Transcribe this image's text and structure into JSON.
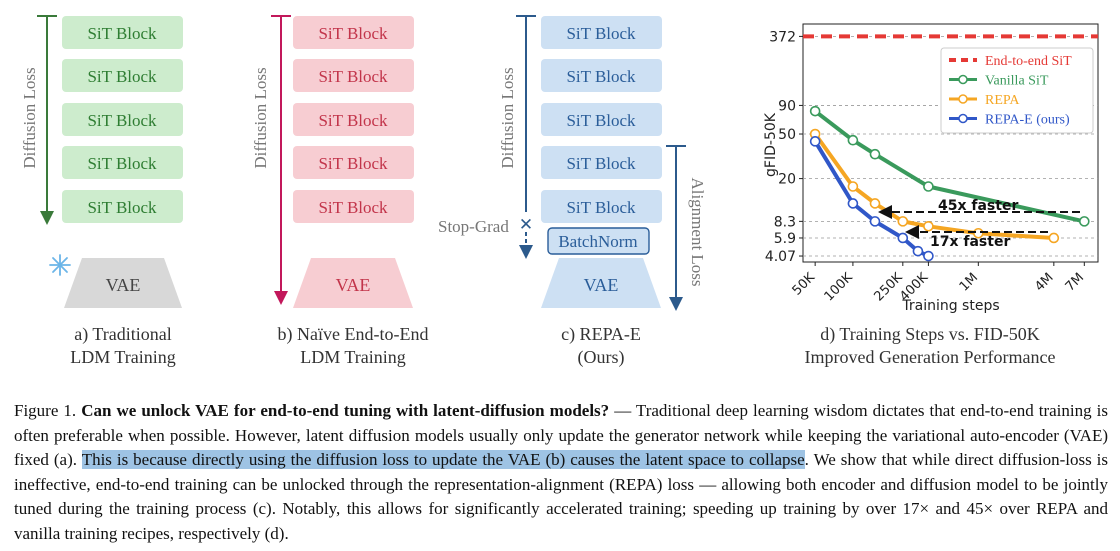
{
  "colors": {
    "green_fill": "#cdeccd",
    "green_text": "#2e7d32",
    "green_arrow": "#3a7a3a",
    "pink_fill": "#f7cdd2",
    "pink_text": "#c2344a",
    "pink_arrow": "#c2185b",
    "blue_fill": "#cde0f3",
    "blue_text": "#2a5d99",
    "blue_arrow": "#2c5a8c",
    "vae_gray": "#d8d8d8",
    "e2e_red": "#e53935",
    "vanilla_green": "#3a9a5c",
    "repa_orange": "#f5a623",
    "repae_blue": "#3057c8",
    "highlight": "#9ec3e4"
  },
  "panel_a": {
    "loss_label": "Diffusion Loss",
    "blocks": [
      "SiT Block",
      "SiT Block",
      "SiT Block",
      "SiT Block",
      "SiT Block"
    ],
    "vae_label": "VAE",
    "frozen_icon": "snowflake-icon",
    "caption_line1": "a) Traditional",
    "caption_line2": "LDM Training"
  },
  "panel_b": {
    "loss_label": "Diffusion Loss",
    "blocks": [
      "SiT Block",
      "SiT Block",
      "SiT Block",
      "SiT Block",
      "SiT Block"
    ],
    "vae_label": "VAE",
    "caption_line1": "b) Naïve End-to-End",
    "caption_line2": "LDM Training"
  },
  "panel_c": {
    "loss_label": "Diffusion Loss",
    "align_label": "Alignment Loss",
    "blocks": [
      "SiT Block",
      "SiT Block",
      "SiT Block",
      "SiT Block",
      "SiT Block"
    ],
    "batchnorm_label": "BatchNorm",
    "stopgrad_label": "Stop-Grad",
    "vae_label": "VAE",
    "caption_line1": "c) REPA-E",
    "caption_line2": "(Ours)"
  },
  "panel_d": {
    "caption_line1": "d) Training Steps vs. FID-50K",
    "caption_line2": "Improved Generation Performance"
  },
  "chart_data": {
    "type": "line",
    "xlabel": "Training steps",
    "ylabel": "gFID-50K",
    "x_scale": "log",
    "y_scale": "log",
    "x_ticks": [
      "50K",
      "100K",
      "250K",
      "400K",
      "1M",
      "4M",
      "7M"
    ],
    "y_ticks": [
      "4.07",
      "5.9",
      "8.3",
      "20",
      "50",
      "90",
      "372"
    ],
    "legend_position": "top-right",
    "series": [
      {
        "name": "End-to-end SiT",
        "style": "dashed",
        "color": "#e53935",
        "x": [
          50000,
          7000000
        ],
        "y": [
          372,
          372
        ]
      },
      {
        "name": "Vanilla SiT",
        "color": "#3a9a5c",
        "x": [
          50000,
          100000,
          150000,
          400000,
          7000000
        ],
        "y": [
          80,
          44,
          33,
          17,
          8.3
        ]
      },
      {
        "name": "REPA",
        "color": "#f5a623",
        "x": [
          50000,
          100000,
          150000,
          250000,
          400000,
          1000000,
          4000000
        ],
        "y": [
          50,
          17,
          12,
          8.3,
          7.5,
          6.5,
          5.9
        ]
      },
      {
        "name": "REPA-E (ours)",
        "color": "#3057c8",
        "x": [
          50000,
          100000,
          150000,
          250000,
          330000,
          400000
        ],
        "y": [
          43,
          12,
          8.3,
          5.9,
          4.5,
          4.07
        ]
      }
    ],
    "annotations": [
      "45x faster",
      "17x faster"
    ]
  },
  "caption": {
    "figure_label": "Figure 1.",
    "bold_title": "Can we unlock VAE for end-to-end tuning with latent-diffusion models?",
    "part1": " — Traditional deep learning wisdom dictates that end-to-end training is often preferable when possible. However, latent diffusion models usually only update the generator network while keeping the variational auto-encoder (VAE) fixed (a). ",
    "highlighted": "This is because directly using the diffusion loss to update the VAE (b) causes the latent space to collapse",
    "part2": ". We show that while direct diffusion-loss is ineffective, end-to-end training can be unlocked through the representation-alignment (REPA) loss — allowing both encoder and diffusion model to be jointly tuned during the training process (c). Notably, this allows for significantly accelerated training; speeding up training by over 17× and 45× over REPA and vanilla training recipes, respectively (d)."
  }
}
